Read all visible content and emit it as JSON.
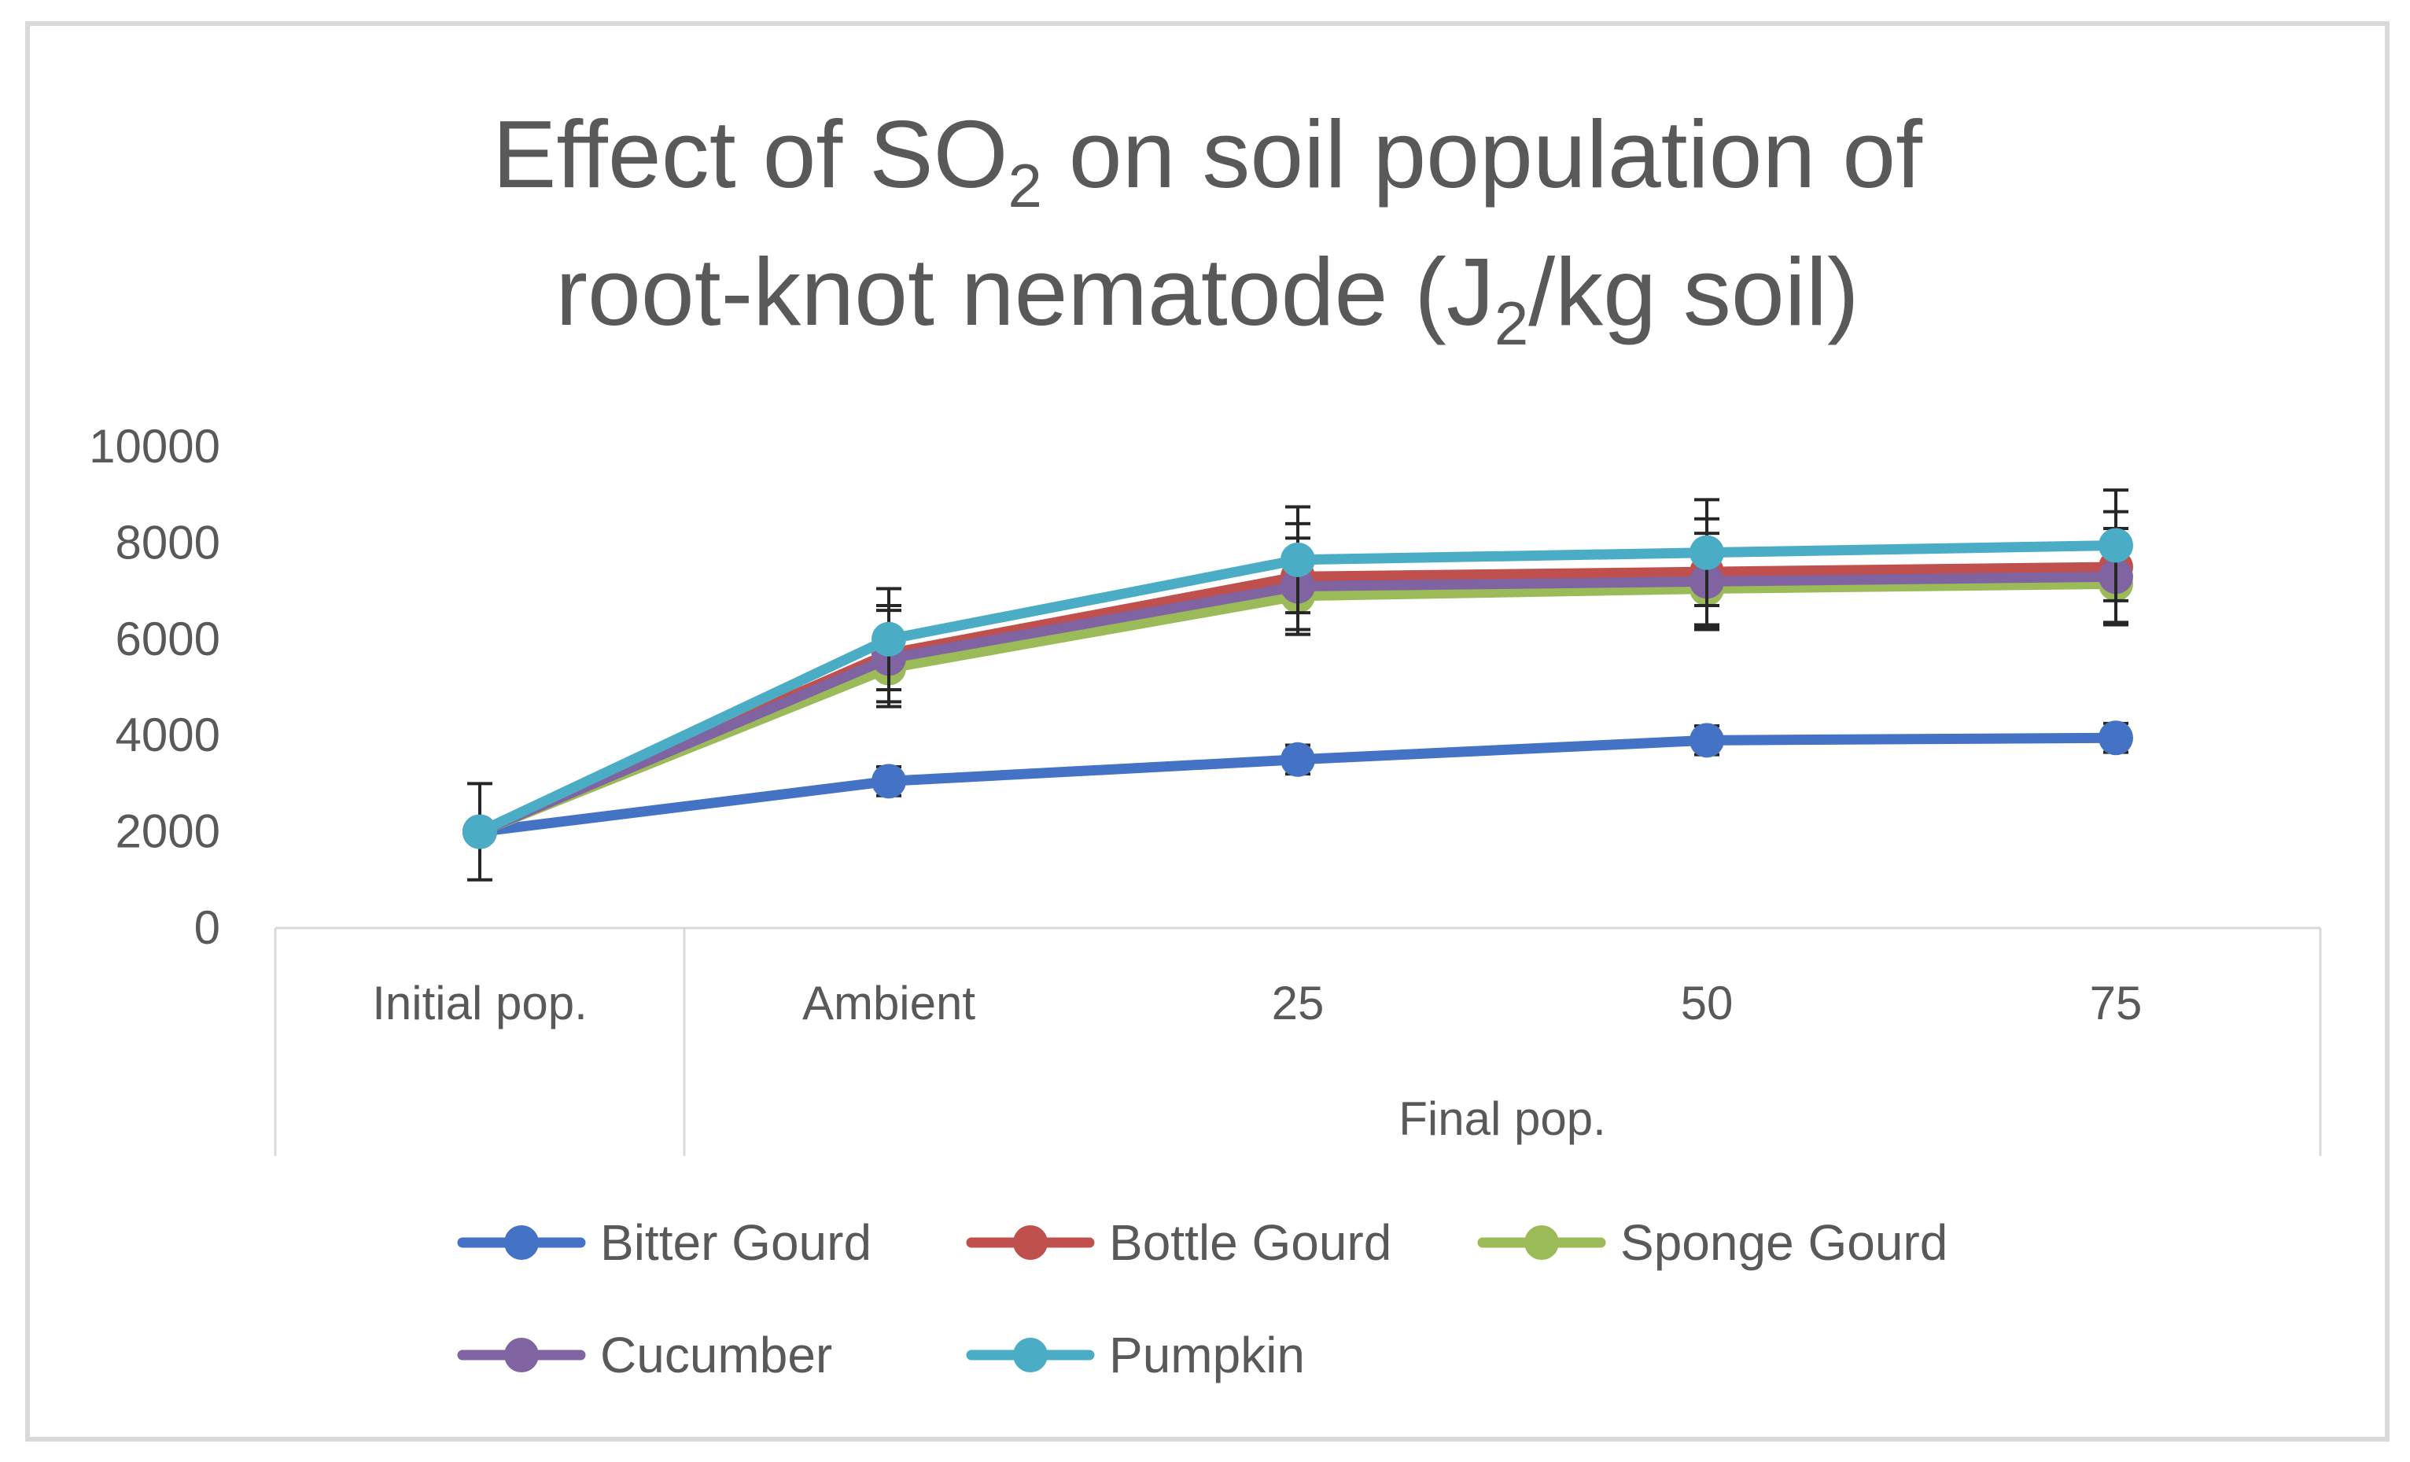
{
  "chart_data": {
    "type": "line",
    "title": {
      "line1_before": "Effect of SO",
      "line1_sub": "2",
      "line1_after": " on soil population of",
      "line2_before": "root-knot nematode (J",
      "line2_sub": "2",
      "line2_after": "/kg soil)"
    },
    "ylim": [
      0,
      10000
    ],
    "yticks": [
      0,
      2000,
      4000,
      6000,
      8000,
      10000
    ],
    "categories": [
      "Initial pop.",
      "Ambient",
      "25",
      "50",
      "75"
    ],
    "group_label": "Final pop.",
    "series": [
      {
        "name": "Bitter Gourd",
        "color": "#4472C4",
        "values": [
          2000,
          3050,
          3500,
          3900,
          3950
        ],
        "errors": [
          0,
          300,
          300,
          300,
          300
        ]
      },
      {
        "name": "Bottle Gourd",
        "color": "#C0504D",
        "values": [
          2000,
          5700,
          7300,
          7400,
          7500
        ],
        "errors": [
          0,
          1000,
          1100,
          1100,
          1150
        ]
      },
      {
        "name": "Sponge Gourd",
        "color": "#9BBB59",
        "values": [
          2000,
          5400,
          6900,
          7050,
          7150
        ],
        "errors": [
          0,
          800,
          800,
          800,
          850
        ]
      },
      {
        "name": "Cucumber",
        "color": "#8064A2",
        "values": [
          2000,
          5600,
          7100,
          7200,
          7300
        ],
        "errors": [
          0,
          1000,
          1000,
          1000,
          1000
        ]
      },
      {
        "name": "Pumpkin",
        "color": "#4BACC6",
        "values": [
          2000,
          6000,
          7650,
          7800,
          7950
        ],
        "errors": [
          1000,
          1050,
          1100,
          1100,
          1150
        ]
      }
    ]
  }
}
